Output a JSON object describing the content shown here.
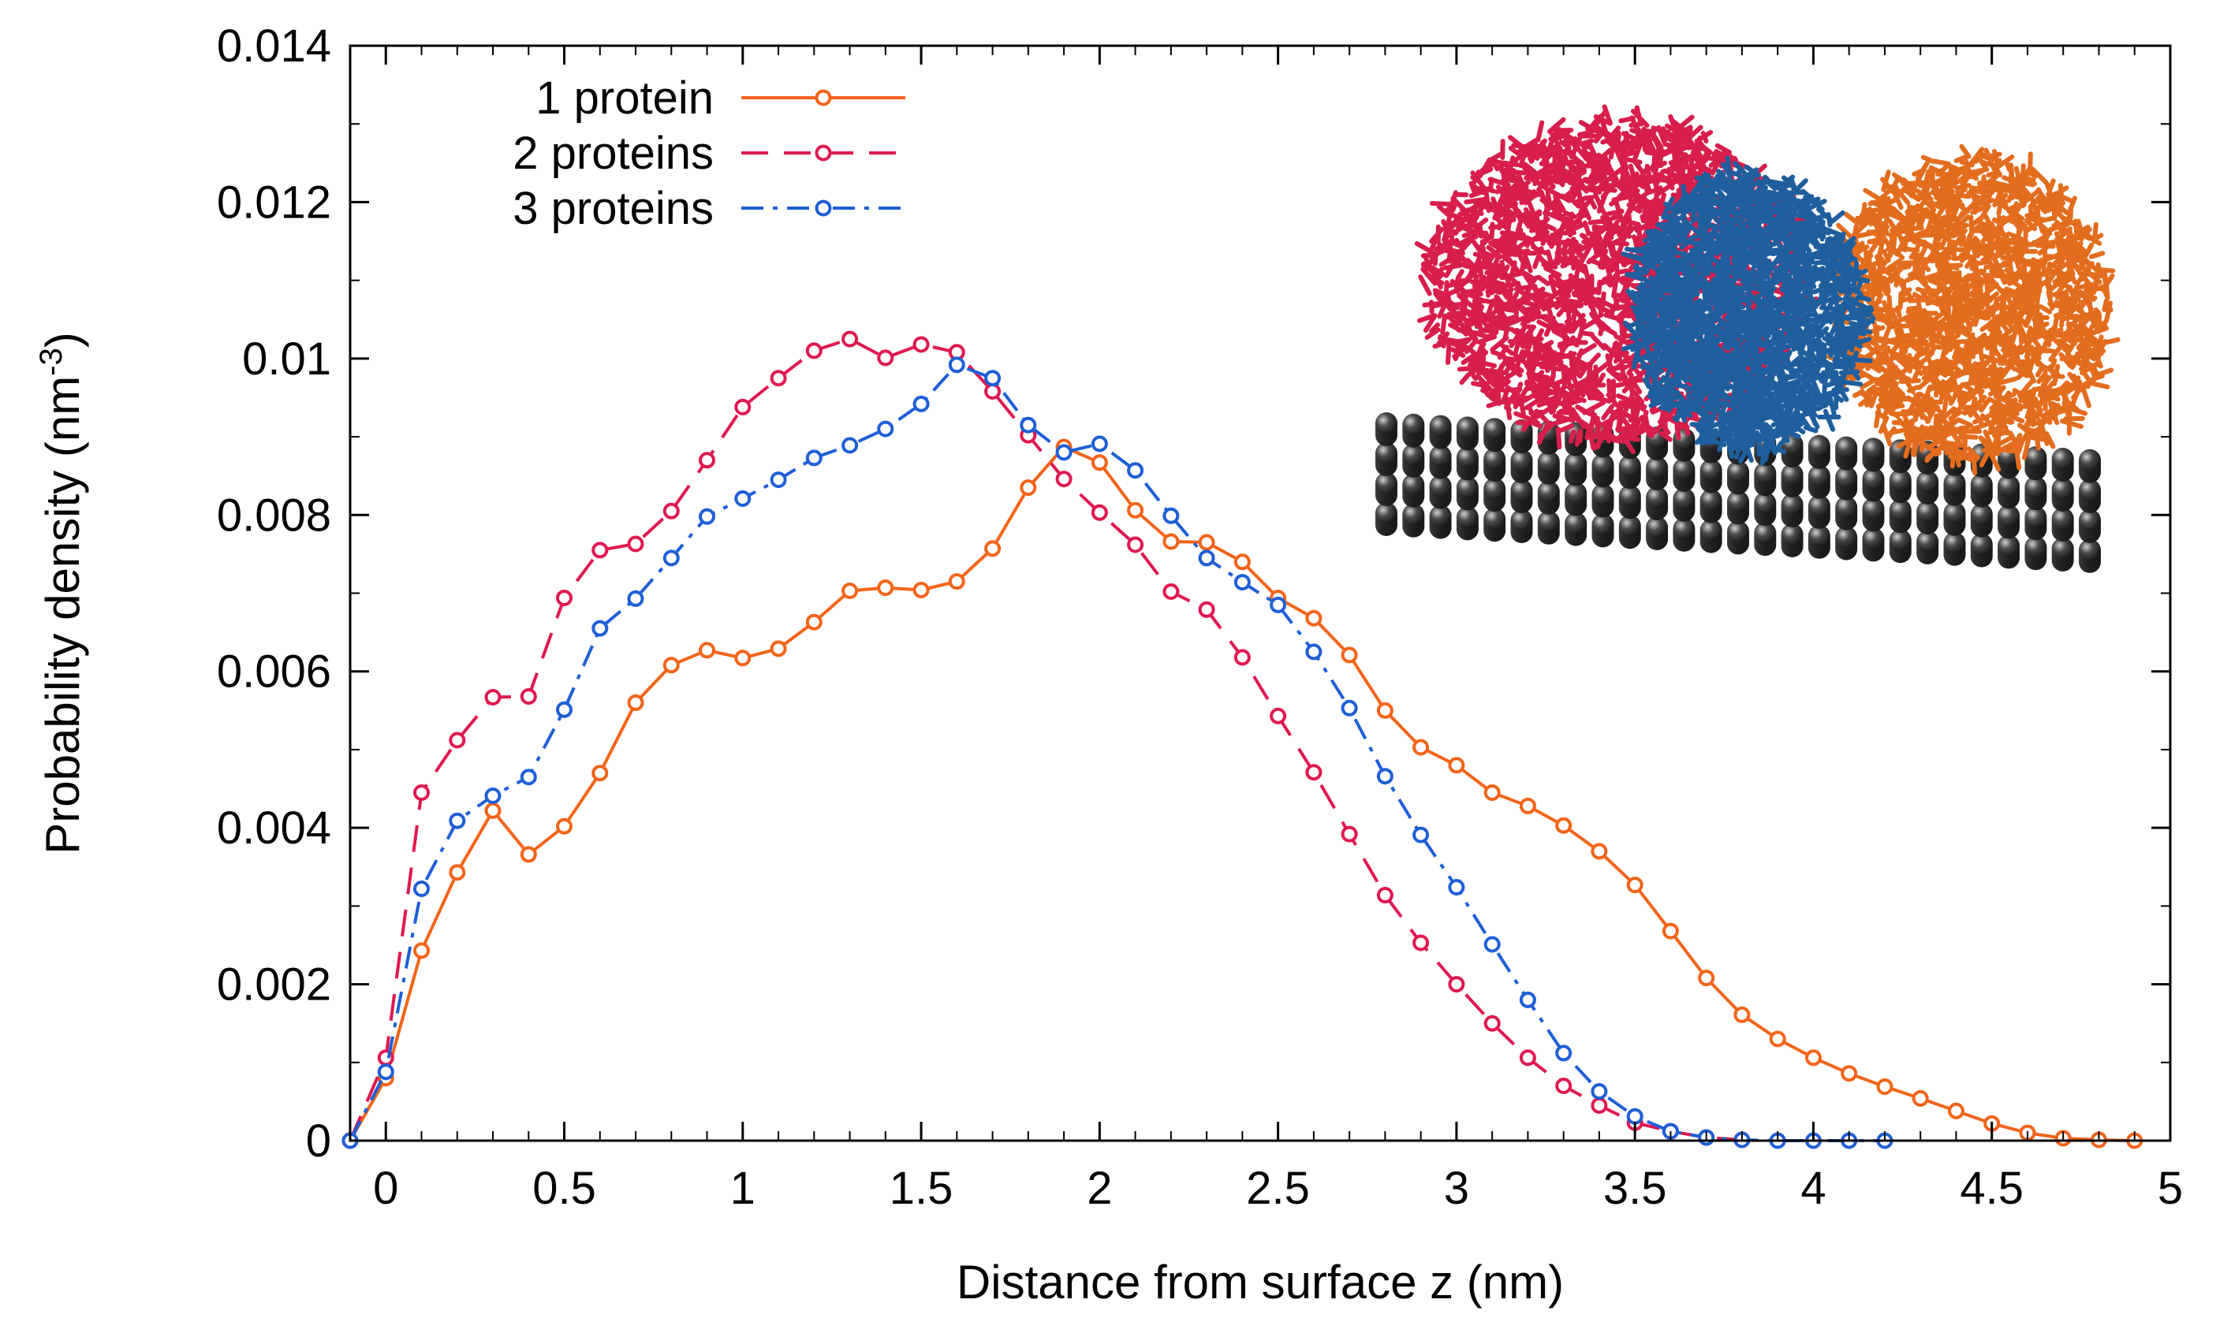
{
  "chart_data": {
    "type": "line",
    "xlabel": "Distance from surface z (nm)",
    "ylabel_main": "Probability density (nm",
    "ylabel_sup": "-3",
    "ylabel_close": ")",
    "xlim": [
      -0.1,
      5
    ],
    "ylim": [
      0,
      0.014
    ],
    "xticks": [
      0,
      0.5,
      1,
      1.5,
      2,
      2.5,
      3,
      3.5,
      4,
      4.5,
      5
    ],
    "xtick_labels": [
      "0",
      "0.5",
      "1",
      "1.5",
      "2",
      "2.5",
      "3",
      "3.5",
      "4",
      "4.5",
      "5"
    ],
    "yticks": [
      0,
      0.002,
      0.004,
      0.006,
      0.008,
      0.01,
      0.012,
      0.014
    ],
    "ytick_labels": [
      "0",
      "0.002",
      "0.004",
      "0.006",
      "0.008",
      "0.01",
      "0.012",
      "0.014"
    ],
    "grid": false,
    "legend_position": "top-left",
    "series": [
      {
        "name": "1 protein",
        "color": "#f26419",
        "dash": "solid",
        "points": [
          [
            -0.1,
            0.0
          ],
          [
            0.0,
            0.0008
          ],
          [
            0.1,
            0.00243
          ],
          [
            0.2,
            0.00343
          ],
          [
            0.3,
            0.00422
          ],
          [
            0.4,
            0.00366
          ],
          [
            0.5,
            0.00402
          ],
          [
            0.6,
            0.0047
          ],
          [
            0.7,
            0.0056
          ],
          [
            0.8,
            0.00608
          ],
          [
            0.9,
            0.00627
          ],
          [
            1.0,
            0.00617
          ],
          [
            1.1,
            0.00629
          ],
          [
            1.2,
            0.00663
          ],
          [
            1.3,
            0.00703
          ],
          [
            1.4,
            0.00707
          ],
          [
            1.5,
            0.00704
          ],
          [
            1.6,
            0.00715
          ],
          [
            1.7,
            0.00757
          ],
          [
            1.8,
            0.00835
          ],
          [
            1.9,
            0.00887
          ],
          [
            2.0,
            0.00867
          ],
          [
            2.1,
            0.00806
          ],
          [
            2.2,
            0.00766
          ],
          [
            2.3,
            0.00765
          ],
          [
            2.4,
            0.0074
          ],
          [
            2.5,
            0.00694
          ],
          [
            2.6,
            0.00668
          ],
          [
            2.7,
            0.00621
          ],
          [
            2.8,
            0.0055
          ],
          [
            2.9,
            0.00503
          ],
          [
            3.0,
            0.0048
          ],
          [
            3.1,
            0.00445
          ],
          [
            3.2,
            0.00428
          ],
          [
            3.3,
            0.00403
          ],
          [
            3.4,
            0.0037
          ],
          [
            3.5,
            0.00327
          ],
          [
            3.6,
            0.00268
          ],
          [
            3.7,
            0.00208
          ],
          [
            3.8,
            0.00161
          ],
          [
            3.9,
            0.0013
          ],
          [
            4.0,
            0.00106
          ],
          [
            4.1,
            0.00086
          ],
          [
            4.2,
            0.00069
          ],
          [
            4.3,
            0.00054
          ],
          [
            4.4,
            0.00038
          ],
          [
            4.5,
            0.00022
          ],
          [
            4.6,
            0.0001
          ],
          [
            4.7,
            3e-05
          ],
          [
            4.8,
            1e-05
          ],
          [
            4.9,
            0.0
          ]
        ]
      },
      {
        "name": "2 proteins",
        "color": "#e0184f",
        "dash": "dashed",
        "points": [
          [
            -0.1,
            0.0
          ],
          [
            0.0,
            0.00106
          ],
          [
            0.1,
            0.00445
          ],
          [
            0.2,
            0.00512
          ],
          [
            0.3,
            0.00567
          ],
          [
            0.4,
            0.00568
          ],
          [
            0.5,
            0.00694
          ],
          [
            0.6,
            0.00755
          ],
          [
            0.7,
            0.00763
          ],
          [
            0.8,
            0.00805
          ],
          [
            0.9,
            0.0087
          ],
          [
            1.0,
            0.00938
          ],
          [
            1.1,
            0.00975
          ],
          [
            1.2,
            0.0101
          ],
          [
            1.3,
            0.01025
          ],
          [
            1.4,
            0.01001
          ],
          [
            1.5,
            0.01018
          ],
          [
            1.6,
            0.01008
          ],
          [
            1.7,
            0.00958
          ],
          [
            1.8,
            0.00902
          ],
          [
            1.9,
            0.00846
          ],
          [
            2.0,
            0.00803
          ],
          [
            2.1,
            0.00762
          ],
          [
            2.2,
            0.00702
          ],
          [
            2.3,
            0.00679
          ],
          [
            2.4,
            0.00618
          ],
          [
            2.5,
            0.00543
          ],
          [
            2.6,
            0.00471
          ],
          [
            2.7,
            0.00392
          ],
          [
            2.8,
            0.00314
          ],
          [
            2.9,
            0.00253
          ],
          [
            3.0,
            0.002
          ],
          [
            3.1,
            0.0015
          ],
          [
            3.2,
            0.00106
          ],
          [
            3.3,
            0.0007
          ],
          [
            3.4,
            0.00045
          ],
          [
            3.5,
            0.00023
          ],
          [
            3.6,
            0.00012
          ],
          [
            3.7,
            4e-05
          ],
          [
            3.8,
            1e-05
          ]
        ]
      },
      {
        "name": "3 proteins",
        "color": "#1e5fd6",
        "dash": "dash-dot",
        "points": [
          [
            -0.1,
            0.0
          ],
          [
            0.0,
            0.00088
          ],
          [
            0.1,
            0.00322
          ],
          [
            0.2,
            0.00409
          ],
          [
            0.3,
            0.00441
          ],
          [
            0.4,
            0.00465
          ],
          [
            0.5,
            0.00551
          ],
          [
            0.6,
            0.00655
          ],
          [
            0.7,
            0.00693
          ],
          [
            0.8,
            0.00745
          ],
          [
            0.9,
            0.00798
          ],
          [
            1.0,
            0.00821
          ],
          [
            1.1,
            0.00845
          ],
          [
            1.2,
            0.00873
          ],
          [
            1.3,
            0.00889
          ],
          [
            1.4,
            0.0091
          ],
          [
            1.5,
            0.00942
          ],
          [
            1.6,
            0.00992
          ],
          [
            1.7,
            0.00975
          ],
          [
            1.8,
            0.00915
          ],
          [
            1.9,
            0.0088
          ],
          [
            2.0,
            0.00891
          ],
          [
            2.1,
            0.00857
          ],
          [
            2.2,
            0.00799
          ],
          [
            2.3,
            0.00745
          ],
          [
            2.4,
            0.00714
          ],
          [
            2.5,
            0.00685
          ],
          [
            2.6,
            0.00625
          ],
          [
            2.7,
            0.00553
          ],
          [
            2.8,
            0.00466
          ],
          [
            2.9,
            0.00391
          ],
          [
            3.0,
            0.00324
          ],
          [
            3.1,
            0.00251
          ],
          [
            3.2,
            0.0018
          ],
          [
            3.3,
            0.00112
          ],
          [
            3.4,
            0.00063
          ],
          [
            3.5,
            0.00031
          ],
          [
            3.6,
            0.00012
          ],
          [
            3.7,
            4e-05
          ],
          [
            3.8,
            1e-05
          ],
          [
            3.9,
            0.0
          ],
          [
            4.0,
            0.0
          ],
          [
            4.1,
            0.0
          ],
          [
            4.2,
            0.0
          ]
        ]
      }
    ]
  },
  "inset": {
    "surface_color": "#4a4a4a",
    "protein_colors": [
      "#d81e4b",
      "#1f5f9e",
      "#e36d1e"
    ]
  }
}
